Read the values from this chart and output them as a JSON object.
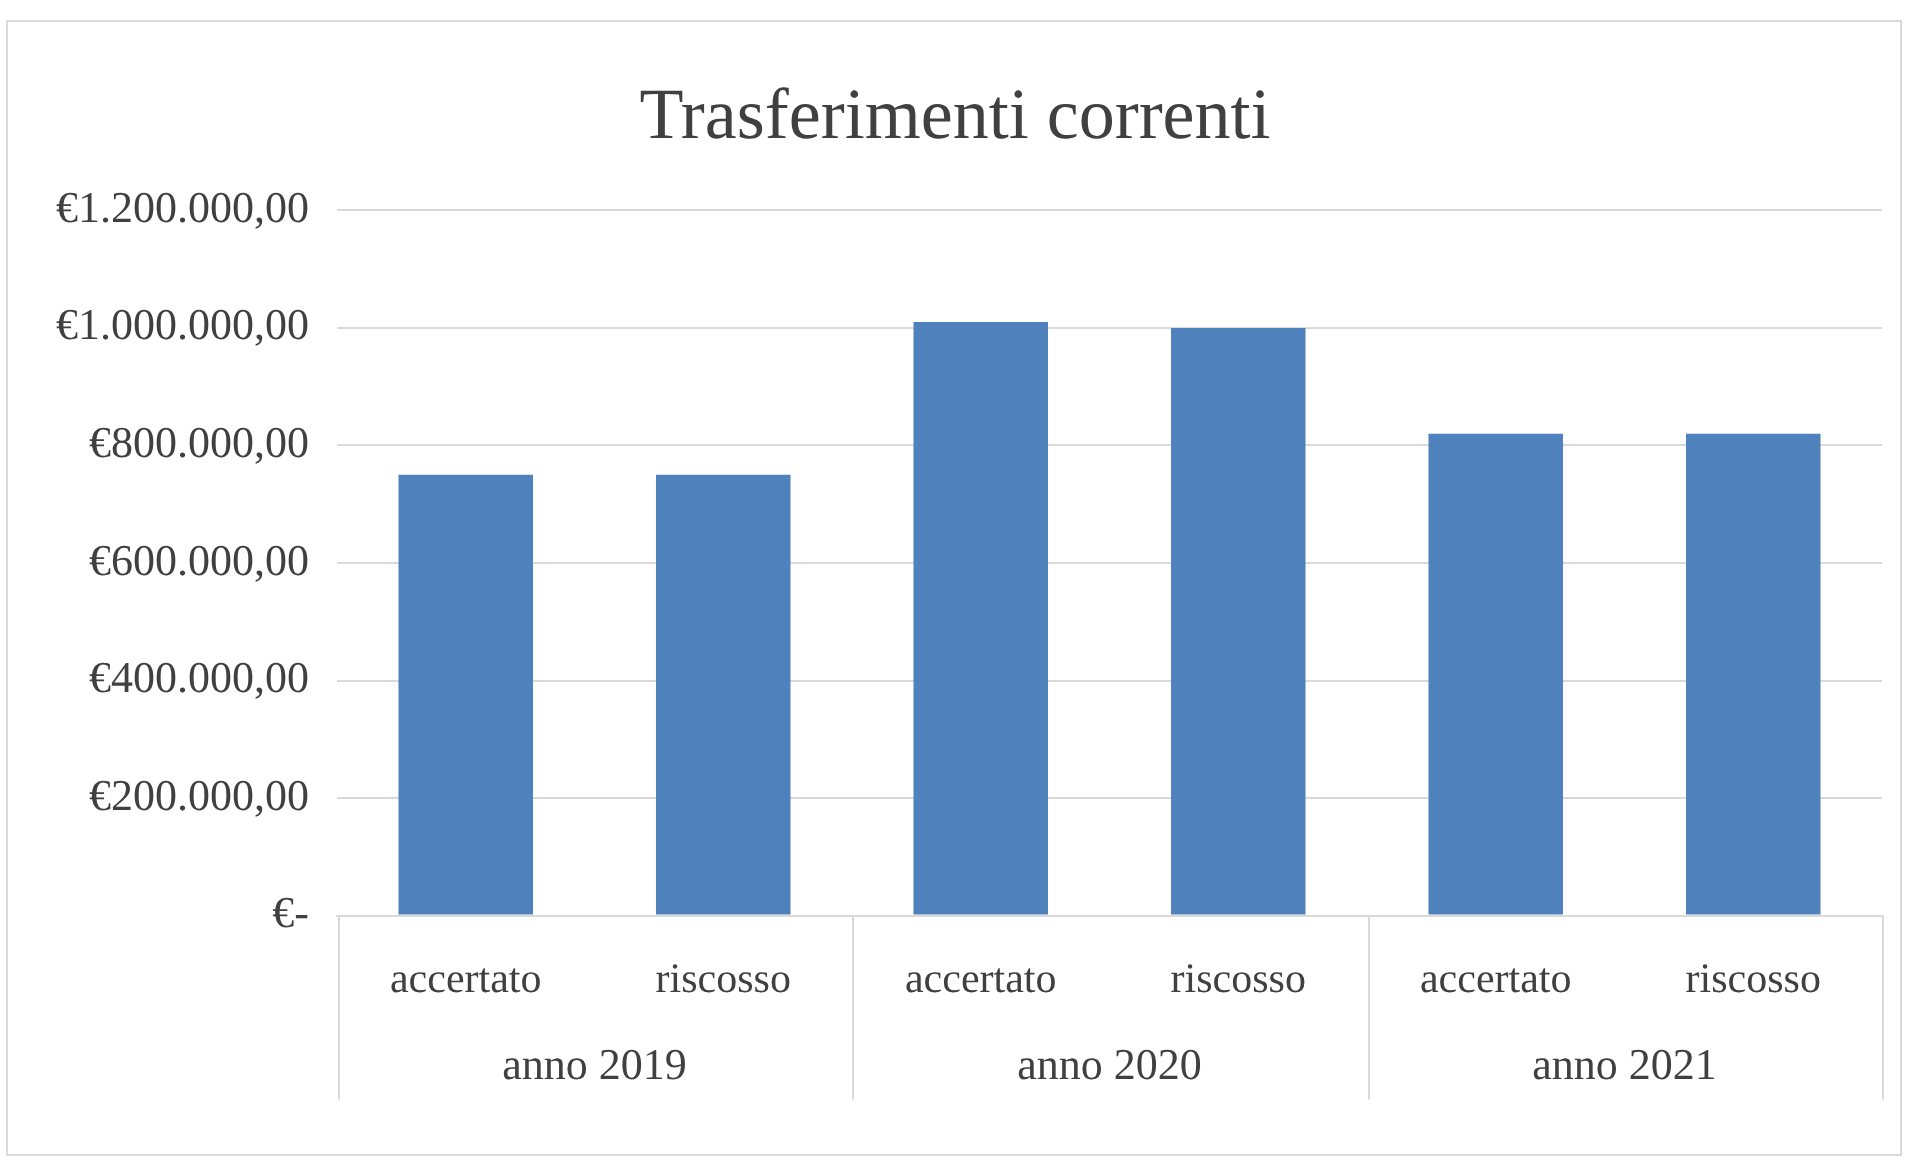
{
  "chart_data": {
    "type": "bar",
    "title": "Trasferimenti correnti",
    "categories": [
      "accertato",
      "riscosso",
      "accertato",
      "riscosso",
      "accertato",
      "riscosso"
    ],
    "values": [
      750000,
      750000,
      1010000,
      1000000,
      820000,
      820000
    ],
    "color": "#4f81bd",
    "ylim": [
      0,
      1200000
    ],
    "yticks": [
      {
        "value": 0,
        "label": "€-"
      },
      {
        "value": 200000,
        "label": "€200.000,00"
      },
      {
        "value": 400000,
        "label": "€400.000,00"
      },
      {
        "value": 600000,
        "label": "€600.000,00"
      },
      {
        "value": 800000,
        "label": "€800.000,00"
      },
      {
        "value": 1000000,
        "label": "€1.000.000,00"
      },
      {
        "value": 1200000,
        "label": "€1.200.000,00"
      }
    ],
    "grid": "y",
    "annotations": [
      "anno 2019",
      "anno 2020",
      "anno 2021"
    ]
  }
}
